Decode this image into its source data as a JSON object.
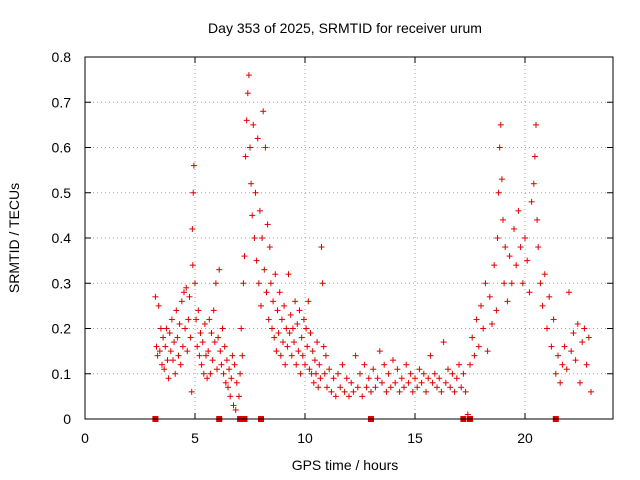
{
  "chart_data": {
    "type": "scatter",
    "title": "Day 353 of 2025, SRMTID for receiver urum",
    "xlabel": "GPS time / hours",
    "ylabel": "SRMTID / TECUs",
    "xlim": [
      0,
      24
    ],
    "ylim": [
      0,
      0.8
    ],
    "xticks": [
      0,
      5,
      10,
      15,
      20
    ],
    "xtick_labels": [
      "0",
      "5",
      "10",
      "15",
      "20"
    ],
    "yticks": [
      0,
      0.1,
      0.2,
      0.3,
      0.4,
      0.5,
      0.6,
      0.7,
      0.8
    ],
    "ytick_labels": [
      "0",
      "0.1",
      "0.2",
      "0.3",
      "0.4",
      "0.5",
      "0.6",
      "0.7",
      "0.8"
    ],
    "grid": true,
    "marker": "+",
    "color": "#e00000",
    "series": [
      {
        "name": "SRMTID",
        "points": [
          [
            3.2,
            0.27
          ],
          [
            3.25,
            0.16
          ],
          [
            3.3,
            0.14
          ],
          [
            3.35,
            0.25
          ],
          [
            3.4,
            0.15
          ],
          [
            3.45,
            0.2
          ],
          [
            3.5,
            0.12
          ],
          [
            3.55,
            0.18
          ],
          [
            3.6,
            0.11
          ],
          [
            3.65,
            0.16
          ],
          [
            3.7,
            0.2
          ],
          [
            3.75,
            0.13
          ],
          [
            3.8,
            0.09
          ],
          [
            3.85,
            0.19
          ],
          [
            3.9,
            0.15
          ],
          [
            3.95,
            0.22
          ],
          [
            4.0,
            0.13
          ],
          [
            4.05,
            0.17
          ],
          [
            4.1,
            0.1
          ],
          [
            4.15,
            0.24
          ],
          [
            4.2,
            0.18
          ],
          [
            4.25,
            0.14
          ],
          [
            4.3,
            0.21
          ],
          [
            4.35,
            0.12
          ],
          [
            4.4,
            0.26
          ],
          [
            4.45,
            0.16
          ],
          [
            4.5,
            0.28
          ],
          [
            4.55,
            0.2
          ],
          [
            4.6,
            0.29
          ],
          [
            4.65,
            0.15
          ],
          [
            4.7,
            0.22
          ],
          [
            4.75,
            0.27
          ],
          [
            4.8,
            0.18
          ],
          [
            4.85,
            0.06
          ],
          [
            4.88,
            0.42
          ],
          [
            4.9,
            0.34
          ],
          [
            4.92,
            0.5
          ],
          [
            4.95,
            0.56
          ],
          [
            5.0,
            0.3
          ],
          [
            5.05,
            0.22
          ],
          [
            5.1,
            0.16
          ],
          [
            5.15,
            0.24
          ],
          [
            5.2,
            0.14
          ],
          [
            5.25,
            0.19
          ],
          [
            5.3,
            0.12
          ],
          [
            5.35,
            0.17
          ],
          [
            5.4,
            0.1
          ],
          [
            5.45,
            0.21
          ],
          [
            5.5,
            0.14
          ],
          [
            5.55,
            0.09
          ],
          [
            5.6,
            0.15
          ],
          [
            5.65,
            0.22
          ],
          [
            5.7,
            0.1
          ],
          [
            5.75,
            0.19
          ],
          [
            5.8,
            0.13
          ],
          [
            5.85,
            0.24
          ],
          [
            5.9,
            0.17
          ],
          [
            5.95,
            0.3
          ],
          [
            6.0,
            0.11
          ],
          [
            6.05,
            0.18
          ],
          [
            6.1,
            0.33
          ],
          [
            6.15,
            0.15
          ],
          [
            6.2,
            0.12
          ],
          [
            6.25,
            0.2
          ],
          [
            6.3,
            0.1
          ],
          [
            6.35,
            0.16
          ],
          [
            6.4,
            0.08
          ],
          [
            6.45,
            0.13
          ],
          [
            6.5,
            0.07
          ],
          [
            6.55,
            0.11
          ],
          [
            6.6,
            0.05
          ],
          [
            6.65,
            0.09
          ],
          [
            6.7,
            0.14
          ],
          [
            6.75,
            0.03
          ],
          [
            6.8,
            0.12
          ],
          [
            6.85,
            0.02
          ],
          [
            6.9,
            0.08
          ],
          [
            7.0,
            0.05
          ],
          [
            7.05,
            0.1
          ],
          [
            7.1,
            0.2
          ],
          [
            7.15,
            0.14
          ],
          [
            7.2,
            0.3
          ],
          [
            7.25,
            0.36
          ],
          [
            7.3,
            0.58
          ],
          [
            7.35,
            0.66
          ],
          [
            7.4,
            0.72
          ],
          [
            7.45,
            0.76
          ],
          [
            7.5,
            0.6
          ],
          [
            7.55,
            0.52
          ],
          [
            7.6,
            0.45
          ],
          [
            7.65,
            0.65
          ],
          [
            7.7,
            0.4
          ],
          [
            7.75,
            0.5
          ],
          [
            7.8,
            0.35
          ],
          [
            7.85,
            0.62
          ],
          [
            7.9,
            0.3
          ],
          [
            7.95,
            0.46
          ],
          [
            8.0,
            0.25
          ],
          [
            8.05,
            0.4
          ],
          [
            8.1,
            0.68
          ],
          [
            8.15,
            0.33
          ],
          [
            8.2,
            0.6
          ],
          [
            8.25,
            0.28
          ],
          [
            8.3,
            0.43
          ],
          [
            8.35,
            0.22
          ],
          [
            8.4,
            0.38
          ],
          [
            8.45,
            0.3
          ],
          [
            8.5,
            0.2
          ],
          [
            8.55,
            0.26
          ],
          [
            8.6,
            0.18
          ],
          [
            8.65,
            0.32
          ],
          [
            8.7,
            0.15
          ],
          [
            8.75,
            0.24
          ],
          [
            8.8,
            0.19
          ],
          [
            8.85,
            0.28
          ],
          [
            8.9,
            0.14
          ],
          [
            8.95,
            0.22
          ],
          [
            9.0,
            0.17
          ],
          [
            9.05,
            0.25
          ],
          [
            9.1,
            0.12
          ],
          [
            9.15,
            0.2
          ],
          [
            9.2,
            0.16
          ],
          [
            9.25,
            0.32
          ],
          [
            9.3,
            0.19
          ],
          [
            9.35,
            0.23
          ],
          [
            9.4,
            0.14
          ],
          [
            9.45,
            0.2
          ],
          [
            9.5,
            0.17
          ],
          [
            9.55,
            0.26
          ],
          [
            9.6,
            0.12
          ],
          [
            9.65,
            0.21
          ],
          [
            9.7,
            0.15
          ],
          [
            9.75,
            0.24
          ],
          [
            9.8,
            0.1
          ],
          [
            9.85,
            0.18
          ],
          [
            9.9,
            0.14
          ],
          [
            9.95,
            0.22
          ],
          [
            10.0,
            0.12
          ],
          [
            10.05,
            0.2
          ],
          [
            10.1,
            0.16
          ],
          [
            10.15,
            0.26
          ],
          [
            10.2,
            0.11
          ],
          [
            10.25,
            0.19
          ],
          [
            10.3,
            0.1
          ],
          [
            10.35,
            0.15
          ],
          [
            10.4,
            0.08
          ],
          [
            10.45,
            0.13
          ],
          [
            10.5,
            0.1
          ],
          [
            10.55,
            0.17
          ],
          [
            10.6,
            0.07
          ],
          [
            10.65,
            0.12
          ],
          [
            10.7,
            0.09
          ],
          [
            10.75,
            0.38
          ],
          [
            10.8,
            0.3
          ],
          [
            10.85,
            0.16
          ],
          [
            10.9,
            0.1
          ],
          [
            10.95,
            0.14
          ],
          [
            11.0,
            0.07
          ],
          [
            11.1,
            0.11
          ],
          [
            11.2,
            0.06
          ],
          [
            11.3,
            0.09
          ],
          [
            11.4,
            0.05
          ],
          [
            11.5,
            0.1
          ],
          [
            11.6,
            0.07
          ],
          [
            11.7,
            0.12
          ],
          [
            11.8,
            0.06
          ],
          [
            11.9,
            0.09
          ],
          [
            12.0,
            0.05
          ],
          [
            12.1,
            0.08
          ],
          [
            12.2,
            0.06
          ],
          [
            12.3,
            0.14
          ],
          [
            12.4,
            0.07
          ],
          [
            12.5,
            0.1
          ],
          [
            12.6,
            0.05
          ],
          [
            12.7,
            0.12
          ],
          [
            12.8,
            0.07
          ],
          [
            12.9,
            0.09
          ],
          [
            13.0,
            0.06
          ],
          [
            13.1,
            0.11
          ],
          [
            13.2,
            0.07
          ],
          [
            13.3,
            0.09
          ],
          [
            13.4,
            0.15
          ],
          [
            13.5,
            0.08
          ],
          [
            13.6,
            0.12
          ],
          [
            13.7,
            0.06
          ],
          [
            13.8,
            0.1
          ],
          [
            13.9,
            0.07
          ],
          [
            14.0,
            0.13
          ],
          [
            14.1,
            0.08
          ],
          [
            14.2,
            0.11
          ],
          [
            14.3,
            0.06
          ],
          [
            14.4,
            0.09
          ],
          [
            14.5,
            0.07
          ],
          [
            14.6,
            0.12
          ],
          [
            14.7,
            0.08
          ],
          [
            14.8,
            0.1
          ],
          [
            14.9,
            0.06
          ],
          [
            15.0,
            0.09
          ],
          [
            15.1,
            0.07
          ],
          [
            15.2,
            0.11
          ],
          [
            15.3,
            0.08
          ],
          [
            15.4,
            0.1
          ],
          [
            15.5,
            0.06
          ],
          [
            15.6,
            0.09
          ],
          [
            15.7,
            0.14
          ],
          [
            15.8,
            0.08
          ],
          [
            15.9,
            0.1
          ],
          [
            16.0,
            0.07
          ],
          [
            16.1,
            0.09
          ],
          [
            16.2,
            0.06
          ],
          [
            16.3,
            0.17
          ],
          [
            16.4,
            0.08
          ],
          [
            16.5,
            0.11
          ],
          [
            16.6,
            0.07
          ],
          [
            16.7,
            0.1
          ],
          [
            16.8,
            0.06
          ],
          [
            16.9,
            0.09
          ],
          [
            17.0,
            0.12
          ],
          [
            17.1,
            0.07
          ],
          [
            17.2,
            0.1
          ],
          [
            17.3,
            0.06
          ],
          [
            17.4,
            0.01
          ],
          [
            17.5,
            0.12
          ],
          [
            17.6,
            0.18
          ],
          [
            17.7,
            0.14
          ],
          [
            17.8,
            0.22
          ],
          [
            17.9,
            0.16
          ],
          [
            18.0,
            0.25
          ],
          [
            18.1,
            0.2
          ],
          [
            18.2,
            0.3
          ],
          [
            18.3,
            0.15
          ],
          [
            18.4,
            0.27
          ],
          [
            18.5,
            0.21
          ],
          [
            18.6,
            0.34
          ],
          [
            18.7,
            0.24
          ],
          [
            18.75,
            0.4
          ],
          [
            18.8,
            0.5
          ],
          [
            18.85,
            0.6
          ],
          [
            18.9,
            0.65
          ],
          [
            18.95,
            0.53
          ],
          [
            19.0,
            0.44
          ],
          [
            19.05,
            0.3
          ],
          [
            19.1,
            0.38
          ],
          [
            19.2,
            0.26
          ],
          [
            19.3,
            0.36
          ],
          [
            19.4,
            0.3
          ],
          [
            19.5,
            0.42
          ],
          [
            19.6,
            0.34
          ],
          [
            19.7,
            0.46
          ],
          [
            19.8,
            0.38
          ],
          [
            19.9,
            0.3
          ],
          [
            20.0,
            0.4
          ],
          [
            20.1,
            0.35
          ],
          [
            20.2,
            0.28
          ],
          [
            20.3,
            0.48
          ],
          [
            20.4,
            0.52
          ],
          [
            20.45,
            0.58
          ],
          [
            20.5,
            0.65
          ],
          [
            20.55,
            0.44
          ],
          [
            20.6,
            0.38
          ],
          [
            20.7,
            0.3
          ],
          [
            20.8,
            0.25
          ],
          [
            20.9,
            0.32
          ],
          [
            21.0,
            0.2
          ],
          [
            21.1,
            0.27
          ],
          [
            21.2,
            0.16
          ],
          [
            21.3,
            0.22
          ],
          [
            21.4,
            0.1
          ],
          [
            21.5,
            0.14
          ],
          [
            21.6,
            0.08
          ],
          [
            21.7,
            0.12
          ],
          [
            21.8,
            0.16
          ],
          [
            21.9,
            0.11
          ],
          [
            22.0,
            0.28
          ],
          [
            22.1,
            0.15
          ],
          [
            22.2,
            0.19
          ],
          [
            22.3,
            0.13
          ],
          [
            22.4,
            0.21
          ],
          [
            22.5,
            0.08
          ],
          [
            22.6,
            0.17
          ],
          [
            22.7,
            0.2
          ],
          [
            22.8,
            0.12
          ],
          [
            22.9,
            0.18
          ],
          [
            23.0,
            0.06
          ]
        ]
      }
    ],
    "zero_markers": [
      3.2,
      6.1,
      7.05,
      7.25,
      8.0,
      13.0,
      17.2,
      17.5,
      21.4
    ]
  }
}
